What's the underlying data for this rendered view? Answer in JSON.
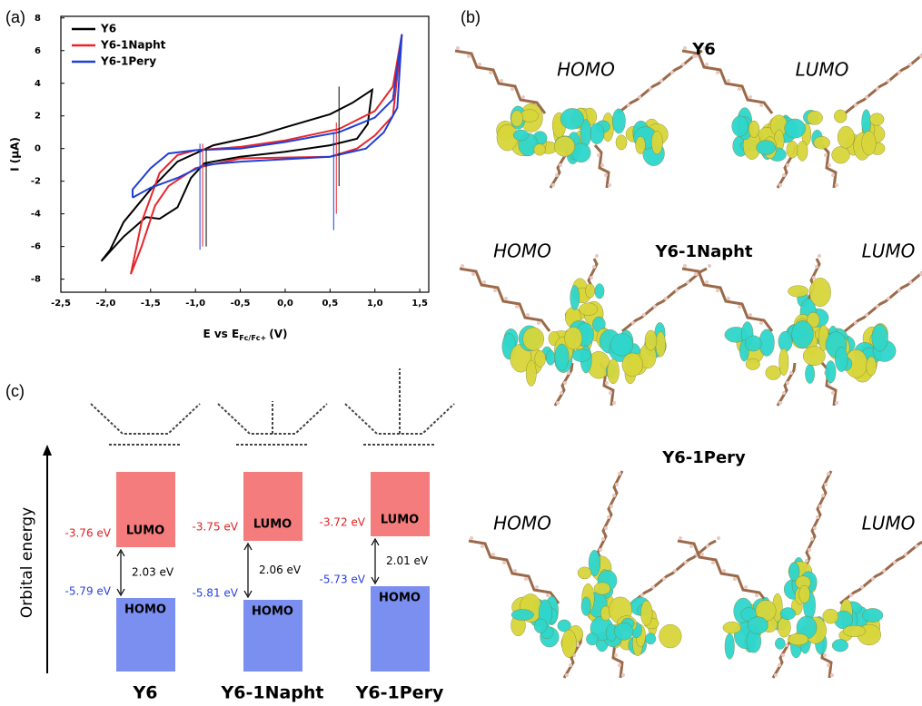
{
  "panel_labels": {
    "a": "(a)",
    "b": "(b)",
    "c": "(c)"
  },
  "chart_data": {
    "type": "line",
    "x_label": "E vs E",
    "x_label_sub": "Fc/Fc+",
    "x_label_unit": "(V)",
    "y_label": "I (μA)",
    "xlim": [
      -2.5,
      1.6
    ],
    "xticks": [
      {
        "value": -2.5,
        "label": "-2,5"
      },
      {
        "value": -2.0,
        "label": "-2,0"
      },
      {
        "value": -1.5,
        "label": "-1,5"
      },
      {
        "value": -1.0,
        "label": "-1,0"
      },
      {
        "value": -0.5,
        "label": "-0,5"
      },
      {
        "value": 0,
        "label": "0,0"
      },
      {
        "value": 0.5,
        "label": "0,5"
      },
      {
        "value": 1.0,
        "label": "1,0"
      },
      {
        "value": 1.5,
        "label": "1,5"
      }
    ],
    "ylim": [
      -8.8,
      8.1
    ],
    "yticks": [
      -8,
      -6,
      -4,
      -2,
      0,
      2,
      4,
      6,
      8
    ],
    "legend": "upper left",
    "series": [
      {
        "name": "Y6",
        "color": "#000000",
        "x": [
          -2.05,
          -1.8,
          -1.55,
          -1.4,
          -1.2,
          -1.05,
          -0.9,
          -0.5,
          0,
          0.5,
          0.8,
          0.92,
          0.97,
          0.75,
          0.5,
          0,
          -0.3,
          -0.8,
          -1.2,
          -1.5,
          -1.8,
          -1.95,
          -2.05
        ],
        "values": [
          -6.9,
          -5.4,
          -4.2,
          -4.3,
          -3.6,
          -1.8,
          -0.9,
          -0.5,
          -0.2,
          0.2,
          0.6,
          1.5,
          3.6,
          2.8,
          2.1,
          1.3,
          0.8,
          0.2,
          -0.8,
          -2.5,
          -4.5,
          -6.2,
          -6.9
        ]
      },
      {
        "name": "Y6-1Napht",
        "color": "#e8262a",
        "x": [
          -1.72,
          -1.6,
          -1.45,
          -1.3,
          -1.0,
          -0.5,
          0.5,
          0.8,
          1.0,
          1.2,
          1.3,
          1.2,
          1.0,
          0.6,
          0,
          -0.5,
          -1.0,
          -1.2,
          -1.4,
          -1.6,
          -1.72
        ],
        "values": [
          -7.7,
          -6.0,
          -3.5,
          -2.3,
          -1.2,
          -0.6,
          -0.5,
          0.0,
          0.8,
          2.0,
          7.0,
          3.8,
          2.3,
          1.2,
          0.5,
          0.1,
          -0.1,
          -0.4,
          -1.5,
          -4.5,
          -7.7
        ]
      },
      {
        "name": "Y6-1Pery",
        "color": "#1f3fd6",
        "x": [
          -1.7,
          -1.5,
          -1.2,
          -0.9,
          -0.5,
          0.5,
          0.9,
          1.1,
          1.25,
          1.3,
          1.2,
          1.0,
          0.6,
          0,
          -0.5,
          -1.0,
          -1.3,
          -1.5,
          -1.7,
          -1.7
        ],
        "values": [
          -3.0,
          -2.4,
          -1.8,
          -1.0,
          -0.8,
          -0.5,
          0.0,
          1.0,
          2.5,
          7.0,
          3.0,
          1.9,
          1.0,
          0.4,
          0.0,
          -0.1,
          -0.3,
          -1.2,
          -2.5,
          -3.0
        ]
      }
    ],
    "onset_lines": [
      {
        "color": "#1f3fd6",
        "x": -0.95,
        "y": [
          0.3,
          -6.2
        ]
      },
      {
        "color": "#e8262a",
        "x": -0.92,
        "y": [
          0.3,
          -6.0
        ]
      },
      {
        "color": "#000000",
        "x": -0.88,
        "y": [
          0.0,
          -6.0
        ]
      },
      {
        "color": "#1f3fd6",
        "x": 0.54,
        "y": [
          1.0,
          -5.0
        ]
      },
      {
        "color": "#e8262a",
        "x": 0.57,
        "y": [
          1.6,
          -4.0
        ]
      },
      {
        "color": "#000000",
        "x": 0.6,
        "y": [
          3.8,
          -2.3
        ]
      }
    ]
  },
  "orbitals": {
    "rows": [
      {
        "title": "Y6",
        "homo": "HOMO",
        "lumo": "LUMO"
      },
      {
        "title": "Y6-1Napht",
        "homo": "HOMO",
        "lumo": "LUMO"
      },
      {
        "title": "Y6-1Pery",
        "homo": "HOMO",
        "lumo": "LUMO"
      }
    ]
  },
  "energy_diagram": {
    "axis_label": "Orbital energy",
    "columns": [
      {
        "name": "Y6",
        "lumo": "LUMO",
        "homo": "HOMO",
        "lumo_energy": "-3.76 eV",
        "homo_energy": "-5.79 eV",
        "gap": "2.03 eV"
      },
      {
        "name": "Y6-1Napht",
        "lumo": "LUMO",
        "homo": "HOMO",
        "lumo_energy": "-3.75 eV",
        "homo_energy": "-5.81 eV",
        "gap": "2.06 eV"
      },
      {
        "name": "Y6-1Pery",
        "lumo": "LUMO",
        "homo": "HOMO",
        "lumo_energy": "-3.72 eV",
        "homo_energy": "-5.73 eV",
        "gap": "2.01 eV"
      }
    ]
  }
}
